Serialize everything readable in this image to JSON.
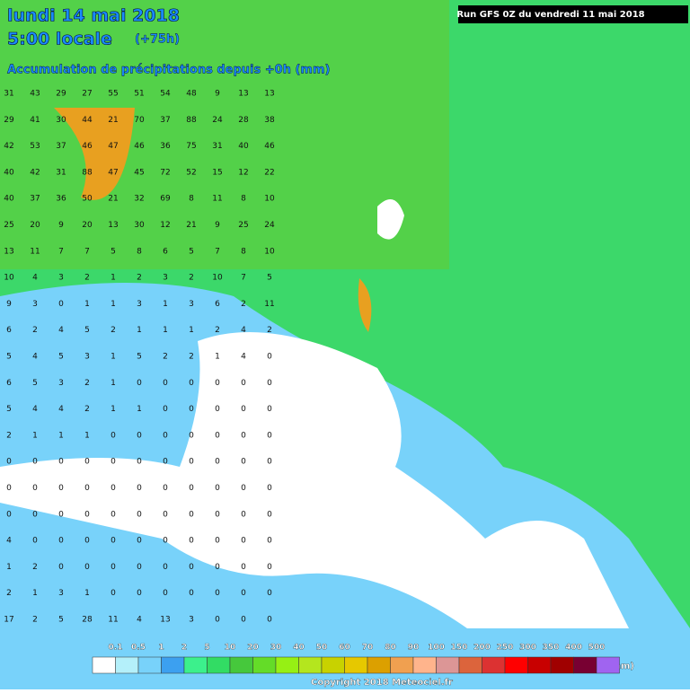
{
  "header": {
    "date": "lundi 14 mai 2018",
    "time": "5:00 locale",
    "lead": "(+75h)",
    "subtitle": "Accumulation de précipitations depuis +0h (mm)",
    "run": "Run GFS 0Z du vendredi 11 mai 2018"
  },
  "grid_values": [
    [
      31,
      43,
      29,
      27,
      55,
      51,
      54,
      48,
      9,
      13,
      13
    ],
    [
      29,
      41,
      30,
      44,
      21,
      70,
      37,
      88,
      24,
      28,
      38
    ],
    [
      42,
      53,
      37,
      46,
      47,
      46,
      36,
      75,
      31,
      40,
      46
    ],
    [
      40,
      42,
      31,
      88,
      47,
      45,
      72,
      52,
      15,
      12,
      22
    ],
    [
      40,
      37,
      36,
      50,
      21,
      32,
      69,
      8,
      11,
      8,
      10
    ],
    [
      25,
      20,
      9,
      20,
      13,
      30,
      12,
      21,
      9,
      25,
      24
    ],
    [
      13,
      11,
      7,
      7,
      5,
      8,
      6,
      5,
      7,
      8,
      10
    ],
    [
      10,
      4,
      3,
      2,
      1,
      2,
      3,
      2,
      10,
      7,
      5
    ],
    [
      9,
      3,
      0,
      1,
      1,
      3,
      1,
      3,
      6,
      2,
      11
    ],
    [
      6,
      2,
      4,
      5,
      2,
      1,
      1,
      1,
      2,
      4,
      2
    ],
    [
      5,
      4,
      5,
      3,
      1,
      5,
      2,
      2,
      1,
      4,
      0
    ],
    [
      6,
      5,
      3,
      2,
      1,
      0,
      0,
      0,
      0,
      0,
      0
    ],
    [
      5,
      4,
      4,
      2,
      1,
      1,
      0,
      0,
      0,
      0,
      0
    ],
    [
      2,
      1,
      1,
      1,
      0,
      0,
      0,
      0,
      0,
      0,
      0
    ],
    [
      0,
      0,
      0,
      0,
      0,
      0,
      0,
      0,
      0,
      0,
      0
    ],
    [
      0,
      0,
      0,
      0,
      0,
      0,
      0,
      0,
      0,
      0,
      0
    ],
    [
      0,
      0,
      0,
      0,
      0,
      0,
      0,
      0,
      0,
      0,
      0
    ],
    [
      4,
      0,
      0,
      0,
      0,
      0,
      0,
      0,
      0,
      0,
      0
    ],
    [
      1,
      2,
      0,
      0,
      0,
      0,
      0,
      0,
      0,
      0,
      0
    ],
    [
      2,
      1,
      3,
      1,
      0,
      0,
      0,
      0,
      0,
      0,
      0
    ],
    [
      17,
      2,
      5,
      28,
      11,
      4,
      13,
      3,
      0,
      0,
      0
    ]
  ],
  "legend": {
    "labels": [
      "0.1",
      "0.5",
      "1",
      "2",
      "5",
      "10",
      "20",
      "30",
      "40",
      "50",
      "60",
      "70",
      "80",
      "90",
      "100",
      "150",
      "200",
      "250",
      "300",
      "350",
      "400",
      "500"
    ],
    "colors": [
      "#ffffff",
      "#b4f0fa",
      "#78d2fa",
      "#3ca0f0",
      "#3cf08c",
      "#32dc64",
      "#46c83c",
      "#64dc28",
      "#96f014",
      "#b4e61e",
      "#c8d200",
      "#e6c800",
      "#dca000",
      "#f0a050",
      "#ffb48c",
      "#dc9696",
      "#dc643c",
      "#dc3232",
      "#ff0000",
      "#c80000",
      "#a00000",
      "#780032",
      "#a064f0"
    ],
    "unit": "(mm)"
  },
  "copyright": "Copyright 2018 Meteociel.fr"
}
